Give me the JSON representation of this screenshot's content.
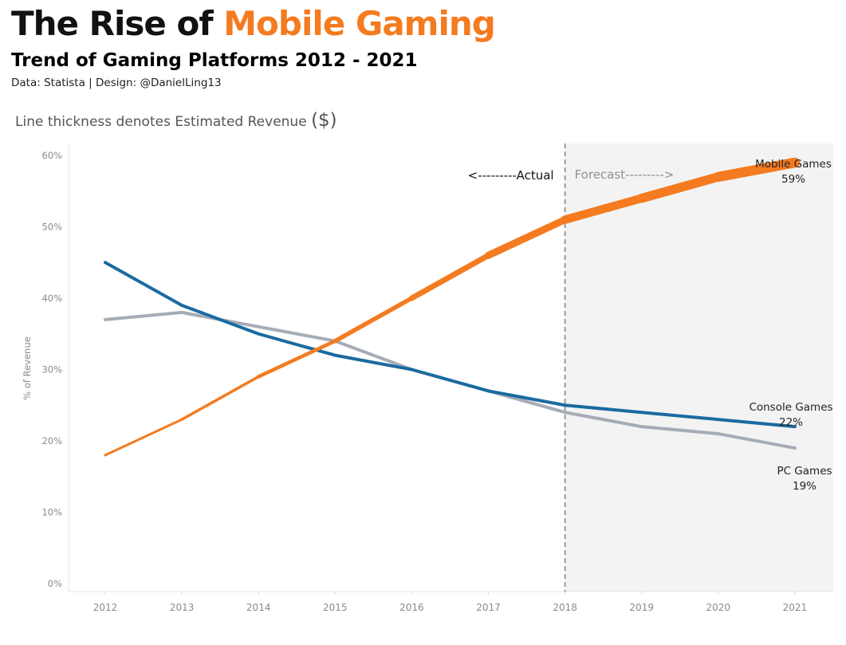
{
  "header": {
    "title_part1": "The Rise of ",
    "title_part2": "Mobile Gaming",
    "subtitle": "Trend of Gaming Platforms 2012 - 2021",
    "credit_label_data": "Data: ",
    "credit_source": "Statista",
    "credit_sep": " | Design: ",
    "credit_author": "@DanielLing13"
  },
  "note": {
    "text": "Line thickness denotes Estimated Revenue ",
    "symbol": "($)"
  },
  "colors": {
    "accent": "#F47B20",
    "mobile": "#F47B20",
    "console": "#1A6BA0",
    "pc": "#A5ACB6",
    "forecast_bg": "#F3F3F3",
    "title": "#111111"
  },
  "chart_data": {
    "type": "line",
    "x": [
      2012,
      2013,
      2014,
      2015,
      2016,
      2017,
      2018,
      2019,
      2020,
      2021
    ],
    "ylabel": "% of Revenue",
    "ylim": [
      0,
      62
    ],
    "yticks": [
      "0%",
      "10%",
      "20%",
      "30%",
      "40%",
      "50%",
      "60%"
    ],
    "ytick_values": [
      0,
      10,
      20,
      30,
      40,
      50,
      60
    ],
    "xticks": [
      "2012",
      "2013",
      "2014",
      "2015",
      "2016",
      "2017",
      "2018",
      "2019",
      "2020",
      "2021"
    ],
    "forecast_start": 2018,
    "actual_label": "<---------Actual",
    "forecast_label": "Forecast--------->",
    "series": [
      {
        "name": "PC Games",
        "end_label": "19%",
        "color": "#A5ACB6",
        "values": [
          37,
          38,
          36,
          34,
          30,
          27,
          24,
          22,
          21,
          19
        ],
        "thickness": [
          4,
          4,
          4,
          4,
          4,
          4,
          4,
          4,
          4,
          4
        ]
      },
      {
        "name": "Console Games",
        "end_label": "22%",
        "color": "#1A6BA0",
        "values": [
          45,
          39,
          35,
          32,
          30,
          27,
          25,
          24,
          23,
          22
        ],
        "thickness": [
          4,
          4,
          4,
          4,
          4,
          4,
          4,
          4,
          4,
          4
        ]
      },
      {
        "name": "Mobile Games",
        "end_label": "59%",
        "color": "#F47B20",
        "values": [
          18,
          23,
          29,
          34,
          40,
          46,
          51,
          54,
          57,
          59
        ],
        "thickness": [
          3,
          3,
          4,
          5,
          6,
          8,
          10,
          11,
          12,
          13
        ]
      }
    ]
  }
}
